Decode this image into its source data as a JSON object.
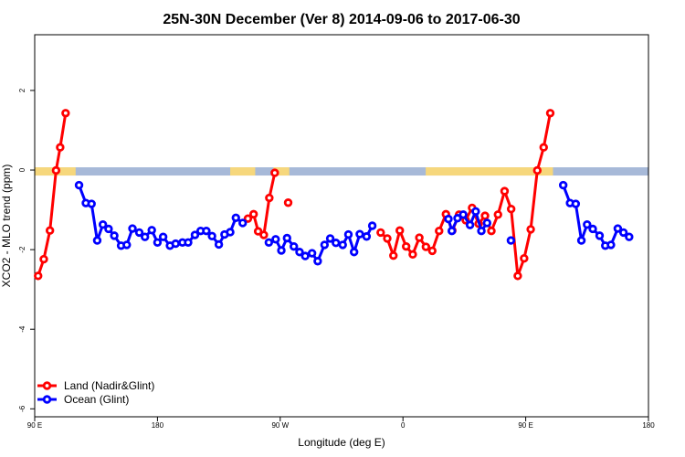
{
  "chart_data": {
    "type": "line",
    "title": "25N-30N December (Ver 8)   2014-09-06 to 2017-06-30",
    "xlabel": "Longitude (deg E)",
    "ylabel": "XCO2 - MLO trend (ppm)",
    "xlim": [
      -90,
      180
    ],
    "ylim": [
      -6.2,
      3.4
    ],
    "x_ticks": [
      {
        "value": -90,
        "label": "90 E"
      },
      {
        "value": -36,
        "label": "180"
      },
      {
        "value": 18,
        "label": "90 W"
      },
      {
        "value": 72,
        "label": "0"
      },
      {
        "value": 126,
        "label": "90 E"
      },
      {
        "value": 180,
        "label": "180"
      }
    ],
    "y_ticks": [
      {
        "value": 2,
        "label": "2"
      },
      {
        "value": 0,
        "label": "0"
      },
      {
        "value": -2,
        "label": "-2"
      },
      {
        "value": -4,
        "label": "-4"
      },
      {
        "value": -6,
        "label": "-6"
      }
    ],
    "land_ocean_strip": {
      "y_value": 0,
      "ocean_color": "#a7b9d8",
      "land_color": "#f6d77c",
      "land_segments": [
        [
          -90,
          -72
        ],
        [
          -4,
          7
        ],
        [
          15,
          22
        ],
        [
          82,
          138
        ]
      ]
    },
    "legend": {
      "position": "bottom-left",
      "entries": [
        {
          "label": "Land (Nadir&Glint)",
          "color": "#ff0000"
        },
        {
          "label": "Ocean (Glint)",
          "color": "#0000ff"
        }
      ]
    },
    "series": [
      {
        "name": "Land (Nadir&Glint)",
        "color": "#ff0000",
        "segments": [
          [
            [
              -88.5,
              -2.66
            ],
            [
              -86,
              -2.24
            ],
            [
              -83.3,
              -1.52
            ],
            [
              -80.6,
              -0.01
            ],
            [
              -78.8,
              0.57
            ],
            [
              -76.4,
              1.43
            ]
          ],
          [
            [
              3.8,
              -1.22
            ],
            [
              6.3,
              -1.11
            ],
            [
              8.3,
              -1.54
            ],
            [
              10.8,
              -1.63
            ],
            [
              13.2,
              -0.7
            ],
            [
              15.6,
              -0.07
            ]
          ],
          [
            [
              21.5,
              -0.82
            ]
          ],
          [
            [
              62.2,
              -1.57
            ],
            [
              65.1,
              -1.72
            ],
            [
              67.8,
              -2.15
            ],
            [
              70.6,
              -1.52
            ],
            [
              73.4,
              -1.92
            ],
            [
              76.3,
              -2.12
            ],
            [
              79.2,
              -1.7
            ],
            [
              82.1,
              -1.93
            ],
            [
              84.9,
              -2.03
            ],
            [
              87.9,
              -1.53
            ],
            [
              90.9,
              -1.11
            ],
            [
              93.7,
              -1.52
            ],
            [
              96.7,
              -1.12
            ],
            [
              99.6,
              -1.26
            ],
            [
              102.4,
              -0.95
            ],
            [
              105.3,
              -1.35
            ],
            [
              108.1,
              -1.15
            ],
            [
              110.9,
              -1.53
            ],
            [
              113.8,
              -1.12
            ],
            [
              116.7,
              -0.53
            ],
            [
              119.6,
              -0.98
            ],
            [
              122.5,
              -2.66
            ],
            [
              125.3,
              -2.22
            ],
            [
              128.2,
              -1.49
            ],
            [
              131.1,
              -0.01
            ],
            [
              133.9,
              0.57
            ],
            [
              136.8,
              1.43
            ]
          ]
        ]
      },
      {
        "name": "Ocean (Glint)",
        "color": "#0000ff",
        "segments": [
          [
            [
              -70.5,
              -0.38
            ],
            [
              -67.5,
              -0.83
            ],
            [
              -65,
              -0.85
            ],
            [
              -62.5,
              -1.77
            ],
            [
              -60,
              -1.37
            ],
            [
              -57.5,
              -1.48
            ],
            [
              -55,
              -1.65
            ],
            [
              -52,
              -1.9
            ],
            [
              -49.5,
              -1.88
            ],
            [
              -47,
              -1.47
            ],
            [
              -44,
              -1.57
            ],
            [
              -41.5,
              -1.68
            ],
            [
              -38.5,
              -1.51
            ],
            [
              -36,
              -1.82
            ],
            [
              -33.5,
              -1.68
            ],
            [
              -30.5,
              -1.9
            ],
            [
              -28,
              -1.85
            ],
            [
              -25,
              -1.82
            ],
            [
              -22.5,
              -1.82
            ],
            [
              -19.5,
              -1.63
            ],
            [
              -17,
              -1.53
            ],
            [
              -14.5,
              -1.53
            ],
            [
              -12,
              -1.66
            ],
            [
              -9,
              -1.87
            ],
            [
              -6.5,
              -1.62
            ],
            [
              -4,
              -1.56
            ],
            [
              -1.5,
              -1.2
            ],
            [
              1.5,
              -1.33
            ]
          ],
          [
            [
              13,
              -1.82
            ],
            [
              16,
              -1.74
            ],
            [
              18.5,
              -2.02
            ],
            [
              21,
              -1.71
            ],
            [
              24,
              -1.92
            ],
            [
              26.5,
              -2.06
            ],
            [
              29,
              -2.16
            ],
            [
              32,
              -2.09
            ],
            [
              34.5,
              -2.29
            ],
            [
              37.5,
              -1.88
            ],
            [
              40,
              -1.72
            ],
            [
              42.5,
              -1.83
            ],
            [
              45.5,
              -1.88
            ],
            [
              48,
              -1.62
            ],
            [
              50.5,
              -2.06
            ],
            [
              53,
              -1.61
            ],
            [
              56,
              -1.67
            ],
            [
              58.5,
              -1.4
            ]
          ],
          [
            [
              92,
              -1.23
            ],
            [
              93.5,
              -1.53
            ],
            [
              96,
              -1.21
            ],
            [
              98.5,
              -1.12
            ],
            [
              101.5,
              -1.38
            ],
            [
              104,
              -1.04
            ],
            [
              106.5,
              -1.53
            ],
            [
              109,
              -1.33
            ]
          ],
          [
            [
              119.5,
              -1.77
            ]
          ],
          [
            [
              142.5,
              -0.38
            ],
            [
              145.5,
              -0.83
            ],
            [
              148,
              -0.85
            ],
            [
              150.5,
              -1.77
            ],
            [
              153,
              -1.37
            ],
            [
              155.5,
              -1.48
            ],
            [
              158.5,
              -1.65
            ],
            [
              161,
              -1.9
            ],
            [
              163.5,
              -1.88
            ],
            [
              166.5,
              -1.47
            ],
            [
              169,
              -1.57
            ],
            [
              171.5,
              -1.68
            ]
          ]
        ]
      }
    ]
  }
}
